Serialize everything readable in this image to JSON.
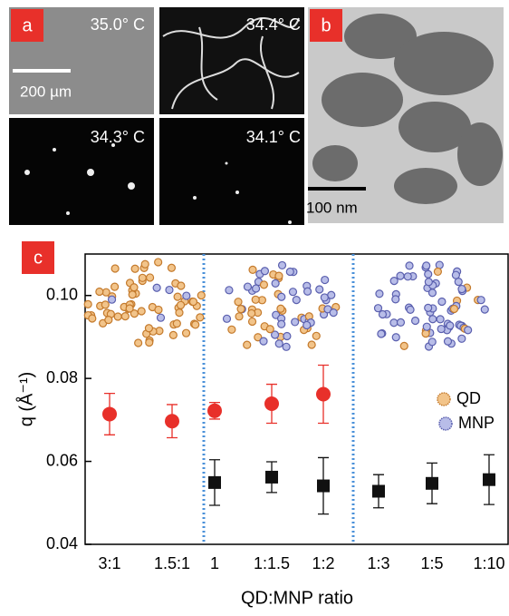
{
  "panels": {
    "a": {
      "label": "a",
      "temps": [
        "35.0° C",
        "34.4° C",
        "34.3° C",
        "34.1° C"
      ],
      "scale": "200 µm"
    },
    "b": {
      "label": "b",
      "scale": "100 nm"
    }
  },
  "chart_data": {
    "type": "scatter",
    "panel_label": "c",
    "x_label": "QD:MNP ratio",
    "y_label": "q (Å⁻¹)",
    "categories": [
      "3:1",
      "1.5:1",
      "1",
      "1:1.5",
      "1:2",
      "1:3",
      "1:5",
      "1:10"
    ],
    "series": [
      {
        "name": "QD",
        "color": "#e8302a",
        "marker": "circle",
        "values": [
          0.0714,
          0.0697,
          0.0722,
          0.0739,
          0.0762,
          null,
          null,
          null
        ],
        "errors": [
          0.005,
          0.004,
          0.002,
          0.0047,
          0.007,
          null,
          null,
          null
        ]
      },
      {
        "name": "MNP",
        "color": "#111111",
        "marker": "square",
        "values": [
          null,
          null,
          0.0549,
          0.0562,
          0.0541,
          0.0528,
          0.0547,
          0.0556
        ],
        "errors": [
          null,
          null,
          0.0055,
          0.0037,
          0.0068,
          0.004,
          0.0049,
          0.006
        ]
      }
    ],
    "ylim": [
      0.04,
      0.11
    ],
    "yticks": [
      0.04,
      0.06,
      0.08,
      {
        "value": 0.1,
        "label": "0.10"
      }
    ]
  }
}
